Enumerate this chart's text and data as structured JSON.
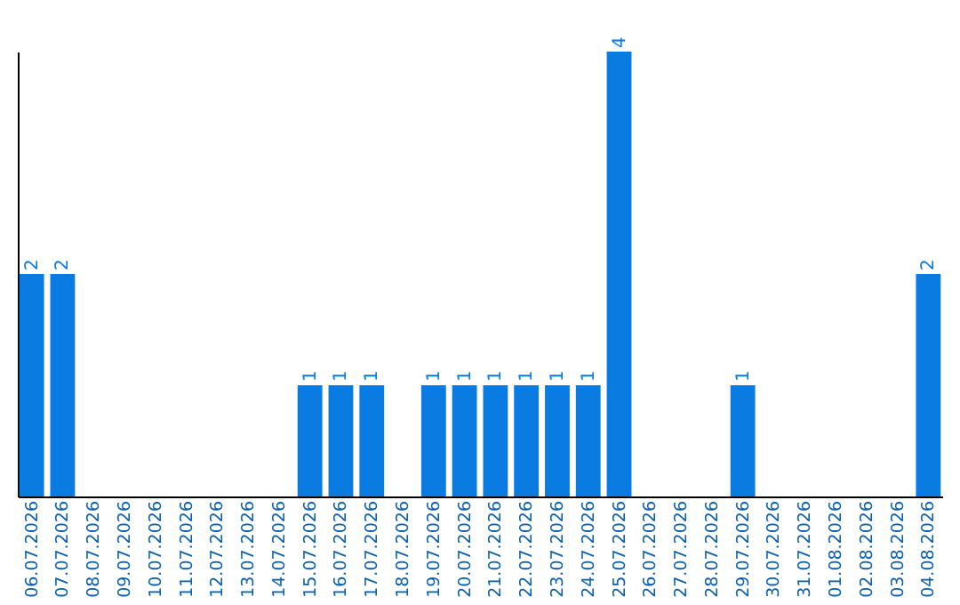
{
  "chart_data": {
    "type": "bar",
    "categories": [
      "06.07.2026",
      "07.07.2026",
      "08.07.2026",
      "09.07.2026",
      "10.07.2026",
      "11.07.2026",
      "12.07.2026",
      "13.07.2026",
      "14.07.2026",
      "15.07.2026",
      "16.07.2026",
      "17.07.2026",
      "18.07.2026",
      "19.07.2026",
      "20.07.2026",
      "21.07.2026",
      "22.07.2026",
      "23.07.2026",
      "24.07.2026",
      "25.07.2026",
      "26.07.2026",
      "27.07.2026",
      "28.07.2026",
      "29.07.2026",
      "30.07.2026",
      "31.07.2026",
      "01.08.2026",
      "02.08.2026",
      "03.08.2026",
      "04.08.2026"
    ],
    "values": [
      2,
      2,
      0,
      0,
      0,
      0,
      0,
      0,
      0,
      1,
      1,
      1,
      0,
      1,
      1,
      1,
      1,
      1,
      1,
      4,
      0,
      0,
      0,
      1,
      0,
      0,
      0,
      0,
      0,
      2
    ],
    "value_labels": [
      "2",
      "2",
      null,
      null,
      null,
      null,
      null,
      null,
      null,
      "1",
      "1",
      "1",
      null,
      "1",
      "1",
      "1",
      "1",
      "1",
      "1",
      "4",
      null,
      null,
      null,
      "1",
      null,
      null,
      null,
      null,
      null,
      "2"
    ],
    "color": "#0a7be0",
    "tick_labels": "x",
    "grid": false
  }
}
